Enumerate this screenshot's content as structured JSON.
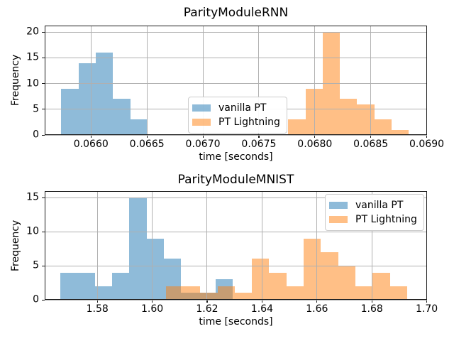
{
  "figure": {
    "background": "#ffffff",
    "grid_color": "#b0b0b0",
    "spine_color": "#1a1a1a",
    "legend_border_color": "#cccccc",
    "text_color": "#000000",
    "fill_alpha": 0.5
  },
  "series_colors": {
    "vanilla_pt": "#1f77b4",
    "pt_lightning": "#ff7f0e"
  },
  "chart_data": [
    {
      "type": "histogram",
      "title": "ParityModuleRNN",
      "xlabel": "time [seconds]",
      "ylabel": "Frequency",
      "xlim": [
        0.065586,
        0.069003
      ],
      "ylim": [
        0,
        21.25
      ],
      "xtick_values": [
        0.066,
        0.0665,
        0.067,
        0.0675,
        0.068,
        0.0685,
        0.069
      ],
      "xtick_labels": [
        "0.0660",
        "0.0665",
        "0.0670",
        "0.0675",
        "0.0680",
        "0.0685",
        "0.0690"
      ],
      "ytick_values": [
        0,
        5,
        10,
        15,
        20
      ],
      "ytick_labels": [
        "0",
        "5",
        "10",
        "15",
        "20"
      ],
      "grid": true,
      "legend": {
        "loc": "center",
        "entries": [
          {
            "label": "vanilla PT",
            "series": "vanilla_pt"
          },
          {
            "label": "PT Lightning",
            "series": "pt_lightning"
          }
        ]
      },
      "series": [
        {
          "name": "vanilla PT",
          "color_key": "vanilla_pt",
          "bin_start": 0.0657335,
          "bin_width": 0.00015435,
          "counts": [
            9,
            14,
            16,
            7,
            3
          ]
        },
        {
          "name": "PT Lightning",
          "color_key": "pt_lightning",
          "bin_start": 0.0677635,
          "bin_width": 0.00015355,
          "counts": [
            3,
            9,
            20,
            7,
            6,
            3,
            1
          ]
        }
      ]
    },
    {
      "type": "histogram",
      "title": "ParityModuleMNIST",
      "xlabel": "time [seconds]",
      "ylabel": "Frequency",
      "xlim": [
        1.560834,
        1.7001
      ],
      "ylim": [
        0,
        15.95
      ],
      "xtick_values": [
        1.58,
        1.6,
        1.62,
        1.64,
        1.66,
        1.68,
        1.7
      ],
      "xtick_labels": [
        "1.58",
        "1.60",
        "1.62",
        "1.64",
        "1.66",
        "1.68",
        "1.70"
      ],
      "ytick_values": [
        0,
        5,
        10,
        15
      ],
      "ytick_labels": [
        "0",
        "5",
        "10",
        "15"
      ],
      "grid": true,
      "legend": {
        "loc": "upper right",
        "entries": [
          {
            "label": "vanilla PT",
            "series": "vanilla_pt"
          },
          {
            "label": "PT Lightning",
            "series": "pt_lightning"
          }
        ]
      },
      "series": [
        {
          "name": "vanilla PT",
          "color_key": "vanilla_pt",
          "bin_start": 1.56656,
          "bin_width": 0.006283,
          "counts": [
            4,
            4,
            2,
            4,
            15,
            9,
            6,
            1,
            1,
            3
          ]
        },
        {
          "name": "PT Lightning",
          "color_key": "pt_lightning",
          "bin_start": 1.60493,
          "bin_width": 0.00628,
          "counts": [
            2,
            2,
            1,
            2,
            1,
            6,
            4,
            2,
            9,
            7,
            5,
            2,
            4,
            2
          ]
        }
      ]
    }
  ]
}
